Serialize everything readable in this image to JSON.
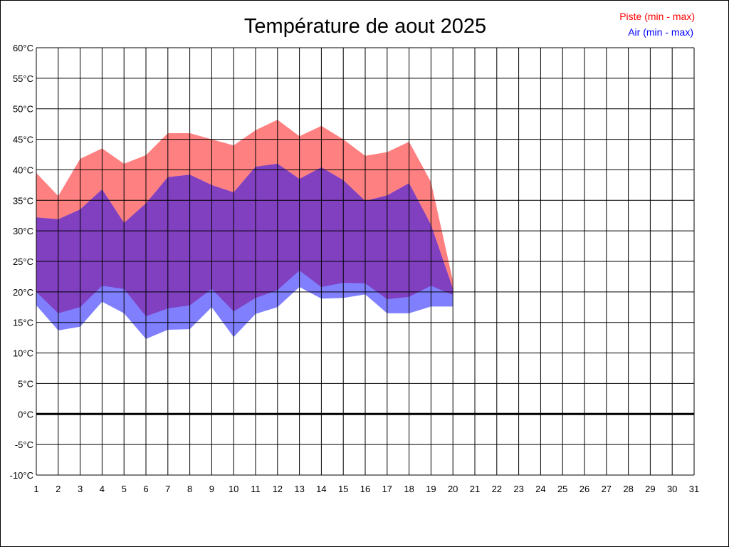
{
  "chart_data": {
    "type": "area",
    "title": "Température de aout 2025",
    "legend_position": "top-right",
    "grid": true,
    "xlim": [
      1,
      31
    ],
    "ylim": [
      -10,
      60
    ],
    "x_ticks": [
      1,
      2,
      3,
      4,
      5,
      6,
      7,
      8,
      9,
      10,
      11,
      12,
      13,
      14,
      15,
      16,
      17,
      18,
      19,
      20,
      21,
      22,
      23,
      24,
      25,
      26,
      27,
      28,
      29,
      30,
      31
    ],
    "y_ticks": [
      -10,
      -5,
      0,
      5,
      10,
      15,
      20,
      25,
      30,
      35,
      40,
      45,
      50,
      55,
      60
    ],
    "y_tick_labels": [
      "-10°C",
      "-5°C",
      "0°C",
      "5°C",
      "10°C",
      "15°C",
      "20°C",
      "25°C",
      "30°C",
      "35°C",
      "40°C",
      "45°C",
      "50°C",
      "55°C",
      "60°C"
    ],
    "zero_line": 0,
    "x": [
      1,
      2,
      3,
      4,
      5,
      6,
      7,
      8,
      9,
      10,
      11,
      12,
      13,
      14,
      15,
      16,
      17,
      18,
      19,
      20
    ],
    "series": [
      {
        "name": "Piste (min - max)",
        "color": "#ff8080",
        "legend_color": "#ff0000",
        "min": [
          20,
          16.5,
          17.5,
          21,
          20.5,
          16,
          17.3,
          17.8,
          20.5,
          16.8,
          19,
          20.3,
          23.5,
          20.8,
          21.5,
          21.4,
          18.8,
          19.2,
          21,
          19.5
        ],
        "max": [
          39.5,
          35.7,
          41.8,
          43.5,
          41,
          42.4,
          46,
          46,
          45,
          44,
          46.5,
          48.2,
          45.5,
          47.2,
          45,
          42.3,
          42.9,
          44.6,
          38,
          21.8
        ]
      },
      {
        "name": "Air (min - max)",
        "color": "#8080ff",
        "legend_color": "#0000ff",
        "min": [
          17.8,
          13.7,
          14.3,
          18.4,
          16.5,
          12.3,
          13.8,
          13.9,
          17.5,
          12.6,
          16.4,
          17.5,
          20.8,
          18.9,
          19,
          19.6,
          16.5,
          16.5,
          17.6,
          17.6
        ],
        "max": [
          32.2,
          31.9,
          33.5,
          36.8,
          31.3,
          34.5,
          38.8,
          39.2,
          37.5,
          36.3,
          40.5,
          41,
          38.5,
          40.4,
          38.3,
          34.9,
          35.8,
          37.8,
          31,
          20.5
        ]
      }
    ],
    "overlap_color": "#8040c0"
  }
}
